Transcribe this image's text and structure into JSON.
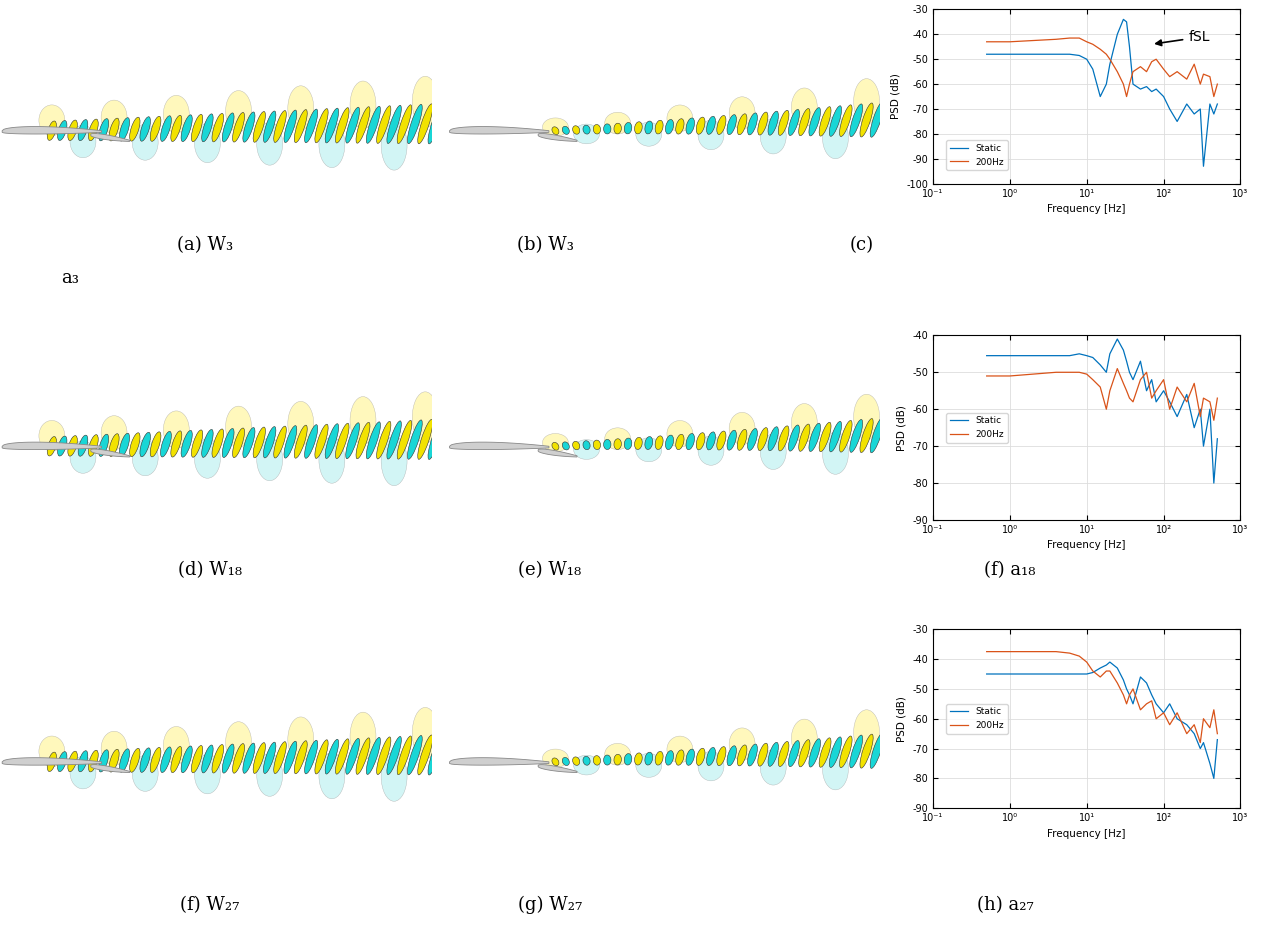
{
  "chart_data": [
    {
      "type": "line",
      "xlabel": "Frequency [Hz]",
      "ylabel": "PSD (dB)",
      "annotation": "fSL",
      "log": "x",
      "grid": true,
      "legend": "lower left",
      "xlim": [
        0.1,
        1000
      ],
      "xticks": [
        {
          "value": 0.1,
          "label": "10⁻¹"
        },
        {
          "value": 1,
          "label": "10⁰"
        },
        {
          "value": 10,
          "label": "10¹"
        },
        {
          "value": 100,
          "label": "10²"
        },
        {
          "value": 1000,
          "label": "10³"
        }
      ],
      "ylim": [
        -100,
        -30
      ],
      "yticks": [
        -100,
        -90,
        -80,
        -70,
        -60,
        -50,
        -40,
        -30
      ],
      "x": [
        0.5,
        1,
        2,
        4,
        6,
        8,
        10,
        12,
        15,
        18,
        20,
        25,
        30,
        33,
        36,
        40,
        50,
        60,
        70,
        80,
        100,
        120,
        150,
        200,
        250,
        300,
        330,
        400,
        450,
        500
      ],
      "series": [
        {
          "name": "Static",
          "color": "#0072BD",
          "values": [
            -48,
            -48,
            -48,
            -48,
            -48,
            -48.5,
            -50,
            -54,
            -65,
            -60,
            -52,
            -40,
            -34,
            -35,
            -45,
            -60,
            -62,
            -61,
            -63,
            -62,
            -65,
            -70,
            -75,
            -68,
            -72,
            -70,
            -93,
            -68,
            -72,
            -68
          ]
        },
        {
          "name": "200Hz",
          "color": "#D95319",
          "values": [
            -43,
            -43,
            -42.5,
            -42,
            -41.5,
            -41.5,
            -43,
            -44,
            -46,
            -48,
            -50,
            -55,
            -60,
            -65,
            -60,
            -55,
            -53,
            -55,
            -51,
            -50,
            -54,
            -57,
            -55,
            -58,
            -52,
            -60,
            -56,
            -57,
            -65,
            -60
          ]
        }
      ]
    },
    {
      "type": "line",
      "xlabel": "Frequency [Hz]",
      "ylabel": "PSD (dB)",
      "log": "x",
      "grid": true,
      "legend": "center left",
      "xlim": [
        0.1,
        1000
      ],
      "xticks": [
        {
          "value": 0.1,
          "label": "10⁻¹"
        },
        {
          "value": 1,
          "label": "10⁰"
        },
        {
          "value": 10,
          "label": "10¹"
        },
        {
          "value": 100,
          "label": "10²"
        },
        {
          "value": 1000,
          "label": "10³"
        }
      ],
      "ylim": [
        -90,
        -40
      ],
      "yticks": [
        -90,
        -80,
        -70,
        -60,
        -50,
        -40
      ],
      "x": [
        0.5,
        1,
        2,
        4,
        6,
        8,
        10,
        12,
        15,
        18,
        20,
        25,
        30,
        33,
        36,
        40,
        50,
        60,
        70,
        80,
        100,
        120,
        150,
        200,
        250,
        300,
        330,
        400,
        450,
        500
      ],
      "series": [
        {
          "name": "Static",
          "color": "#0072BD",
          "values": [
            -45.5,
            -45.5,
            -45.5,
            -45.5,
            -45.5,
            -45,
            -45.5,
            -46,
            -48,
            -50,
            -45,
            -41,
            -44,
            -47,
            -50,
            -52,
            -47,
            -55,
            -52,
            -58,
            -55,
            -58,
            -62,
            -56,
            -65,
            -60,
            -70,
            -60,
            -80,
            -68
          ]
        },
        {
          "name": "200Hz",
          "color": "#D95319",
          "values": [
            -51,
            -51,
            -50.5,
            -50,
            -50,
            -50,
            -50.5,
            -52,
            -54,
            -60,
            -55,
            -49,
            -53,
            -55,
            -57,
            -58,
            -52,
            -50,
            -57,
            -55,
            -52,
            -60,
            -54,
            -58,
            -53,
            -62,
            -57,
            -58,
            -63,
            -57
          ]
        }
      ]
    },
    {
      "type": "line",
      "xlabel": "Frequency [Hz]",
      "ylabel": "PSD (dB)",
      "log": "x",
      "grid": true,
      "legend": "center left",
      "xlim": [
        0.1,
        1000
      ],
      "xticks": [
        {
          "value": 0.1,
          "label": "10⁻¹"
        },
        {
          "value": 1,
          "label": "10⁰"
        },
        {
          "value": 10,
          "label": "10¹"
        },
        {
          "value": 100,
          "label": "10²"
        },
        {
          "value": 1000,
          "label": "10³"
        }
      ],
      "ylim": [
        -90,
        -30
      ],
      "yticks": [
        -90,
        -80,
        -70,
        -60,
        -50,
        -40,
        -30
      ],
      "x": [
        0.5,
        1,
        2,
        4,
        6,
        8,
        10,
        12,
        15,
        18,
        20,
        25,
        30,
        33,
        36,
        40,
        50,
        60,
        70,
        80,
        100,
        120,
        150,
        200,
        250,
        300,
        330,
        400,
        450,
        500
      ],
      "series": [
        {
          "name": "Static",
          "color": "#0072BD",
          "values": [
            -45,
            -45,
            -45,
            -45,
            -45,
            -45,
            -45,
            -44.5,
            -43,
            -42,
            -41,
            -43,
            -47,
            -50,
            -52,
            -55,
            -46,
            -48,
            -52,
            -55,
            -58,
            -55,
            -60,
            -62,
            -65,
            -70,
            -68,
            -75,
            -80,
            -67
          ]
        },
        {
          "name": "200Hz",
          "color": "#D95319",
          "values": [
            -37.5,
            -37.5,
            -37.5,
            -37.5,
            -38,
            -39,
            -41,
            -44,
            -46,
            -44,
            -44,
            -48,
            -52,
            -55,
            -52,
            -50,
            -57,
            -55,
            -54,
            -60,
            -58,
            -62,
            -58,
            -65,
            -62,
            -68,
            -60,
            -63,
            -57,
            -65
          ]
        }
      ]
    }
  ],
  "captions": [
    "(a) W₃",
    "(b) W₃",
    "(c)",
    "a₃",
    "(d) W₁₈",
    "(e) W₁₈",
    "(f) a₁₈",
    "(f) W₂₇",
    "(g) W₂₇",
    "(h) a₂₇"
  ]
}
